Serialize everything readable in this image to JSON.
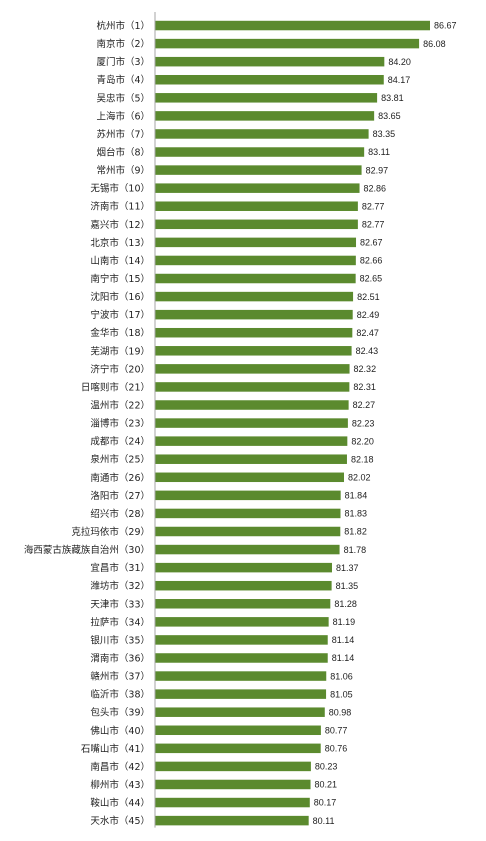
{
  "colors": {
    "bar": "#5b8a2e",
    "axis": "#a6a6a6",
    "text": "#222222",
    "background": "#ffffff"
  },
  "chart_data": {
    "type": "bar",
    "orientation": "horizontal",
    "categories": [
      "杭州市（1）",
      "南京市（2）",
      "厦门市（3）",
      "青岛市（4）",
      "吴忠市（5）",
      "上海市（6）",
      "苏州市（7）",
      "烟台市（8）",
      "常州市（9）",
      "无锡市（10）",
      "济南市（11）",
      "嘉兴市（12）",
      "北京市（13）",
      "山南市（14）",
      "南宁市（15）",
      "沈阳市（16）",
      "宁波市（17）",
      "金华市（18）",
      "芜湖市（19）",
      "济宁市（20）",
      "日喀则市（21）",
      "温州市（22）",
      "淄博市（23）",
      "成都市（24）",
      "泉州市（25）",
      "南通市（26）",
      "洛阳市（27）",
      "绍兴市（28）",
      "克拉玛依市（29）",
      "海西蒙古族藏族自治州（30）",
      "宜昌市（31）",
      "潍坊市（32）",
      "天津市（33）",
      "拉萨市（34）",
      "银川市（35）",
      "渭南市（36）",
      "赣州市（37）",
      "临沂市（38）",
      "包头市（39）",
      "佛山市（40）",
      "石嘴山市（41）",
      "南昌市（42）",
      "柳州市（43）",
      "鞍山市（44）",
      "天水市（45）"
    ],
    "values": [
      86.67,
      86.08,
      84.2,
      84.17,
      83.81,
      83.65,
      83.35,
      83.11,
      82.97,
      82.86,
      82.77,
      82.77,
      82.67,
      82.66,
      82.65,
      82.51,
      82.49,
      82.47,
      82.43,
      82.32,
      82.31,
      82.27,
      82.23,
      82.2,
      82.18,
      82.02,
      81.84,
      81.83,
      81.82,
      81.78,
      81.37,
      81.35,
      81.28,
      81.19,
      81.14,
      81.14,
      81.06,
      81.05,
      80.98,
      80.77,
      80.76,
      80.23,
      80.21,
      80.17,
      80.11
    ],
    "value_labels": [
      "86.67",
      "86.08",
      "84.20",
      "84.17",
      "83.81",
      "83.65",
      "83.35",
      "83.11",
      "82.97",
      "82.86",
      "82.77",
      "82.77",
      "82.67",
      "82.66",
      "82.65",
      "82.51",
      "82.49",
      "82.47",
      "82.43",
      "82.32",
      "82.31",
      "82.27",
      "82.23",
      "82.20",
      "82.18",
      "82.02",
      "81.84",
      "81.83",
      "81.82",
      "81.78",
      "81.37",
      "81.35",
      "81.28",
      "81.19",
      "81.14",
      "81.14",
      "81.06",
      "81.05",
      "80.98",
      "80.77",
      "80.76",
      "80.23",
      "80.21",
      "80.17",
      "80.11"
    ],
    "xlim": [
      71.8,
      86.67
    ],
    "grid": false,
    "legend": "none"
  }
}
